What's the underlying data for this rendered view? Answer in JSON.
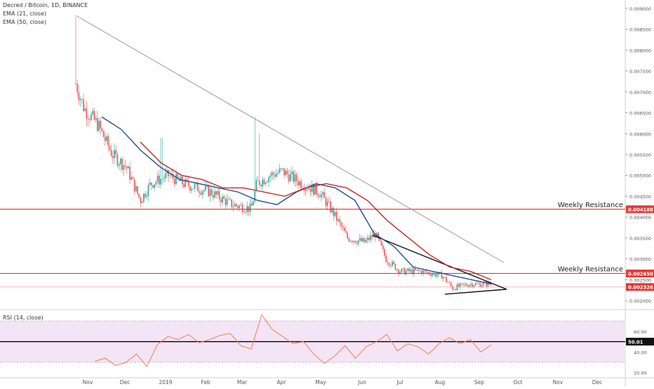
{
  "legend": {
    "symbol_line": "Decred / Bitcoin, 1D, BINANCE",
    "ema21_label": "EMA (21, close)",
    "ema50_label": "EMA (50, close)",
    "rsi_label": "RSI (14, close)"
  },
  "annotations": {
    "weekly_resistance_upper": "Weekly Resistance",
    "weekly_resistance_lower": "Weekly Resistance"
  },
  "price_badges": {
    "resistance_upper": "0.004188",
    "resistance_lower": "0.002650",
    "last_price": "0.002326",
    "rsi_value": "50.01"
  },
  "colors": {
    "candle_up": "#26a69a",
    "candle_down": "#ef5350",
    "ema21": "#1f4e99",
    "ema50": "#c62828",
    "resistance": "#e53935",
    "trendline": "#999999",
    "triangle": "#111111",
    "rsi_line": "#f57c52",
    "rsi_band": "#f3e5f5",
    "rsi_midline": "#000000",
    "badge_red": "#e53935",
    "badge_black": "#111111"
  },
  "chart_data": [
    {
      "type": "candlestick",
      "title": "Decred / Bitcoin, 1D, BINANCE",
      "x_ticks": [
        "Nov",
        "Dec",
        "2019",
        "Feb",
        "Mar",
        "Apr",
        "May",
        "Jun",
        "Jul",
        "Aug",
        "Sep",
        "Oct",
        "Nov",
        "Dec"
      ],
      "y_ticks": [
        "0.002000",
        "0.002500",
        "0.003000",
        "0.003500",
        "0.004000",
        "0.004500",
        "0.005000",
        "0.005500",
        "0.006000",
        "0.006500",
        "0.007000",
        "0.007500",
        "0.008000",
        "0.008500",
        "0.009000"
      ],
      "ylim": [
        0.0018,
        0.0092
      ],
      "horizontal_lines": [
        {
          "label": "Weekly Resistance",
          "value": 0.004188
        },
        {
          "label": "Weekly Resistance",
          "value": 0.00265
        },
        {
          "value": 0.002326
        }
      ],
      "series": [
        {
          "name": "EMA (21, close)",
          "values": [
            0.0064,
            0.0061,
            0.0056,
            0.0052,
            0.0049,
            0.0048,
            0.0047,
            0.0046,
            0.0044,
            0.0043,
            0.0046,
            0.0048,
            0.0047,
            0.0044,
            0.0036,
            0.0033,
            0.0028,
            0.0027,
            0.0026,
            0.0025,
            0.0024
          ]
        },
        {
          "name": "EMA (50, close)",
          "values": [
            0.0058,
            0.0053,
            0.005,
            0.0049,
            0.0047,
            0.0047,
            0.0046,
            0.0045,
            0.0047,
            0.0048,
            0.0047,
            0.0044,
            0.0039,
            0.0035,
            0.0031,
            0.0028,
            0.0027,
            0.0025
          ]
        }
      ]
    },
    {
      "type": "line",
      "title": "RSI (14, close)",
      "y_ticks": [
        "20.00",
        "40.00",
        "60.00"
      ],
      "ylim": [
        15,
        81
      ],
      "band": [
        30,
        70
      ],
      "midline": 50.01,
      "series": [
        {
          "name": "RSI (14, close)",
          "values": [
            31,
            34,
            27,
            30,
            38,
            26,
            47,
            55,
            52,
            57,
            49,
            52,
            56,
            58,
            46,
            43,
            76,
            62,
            55,
            48,
            50,
            38,
            29,
            36,
            46,
            34,
            45,
            50,
            57,
            41,
            48,
            45,
            38,
            48,
            54,
            48,
            52,
            40,
            47
          ]
        }
      ]
    }
  ]
}
